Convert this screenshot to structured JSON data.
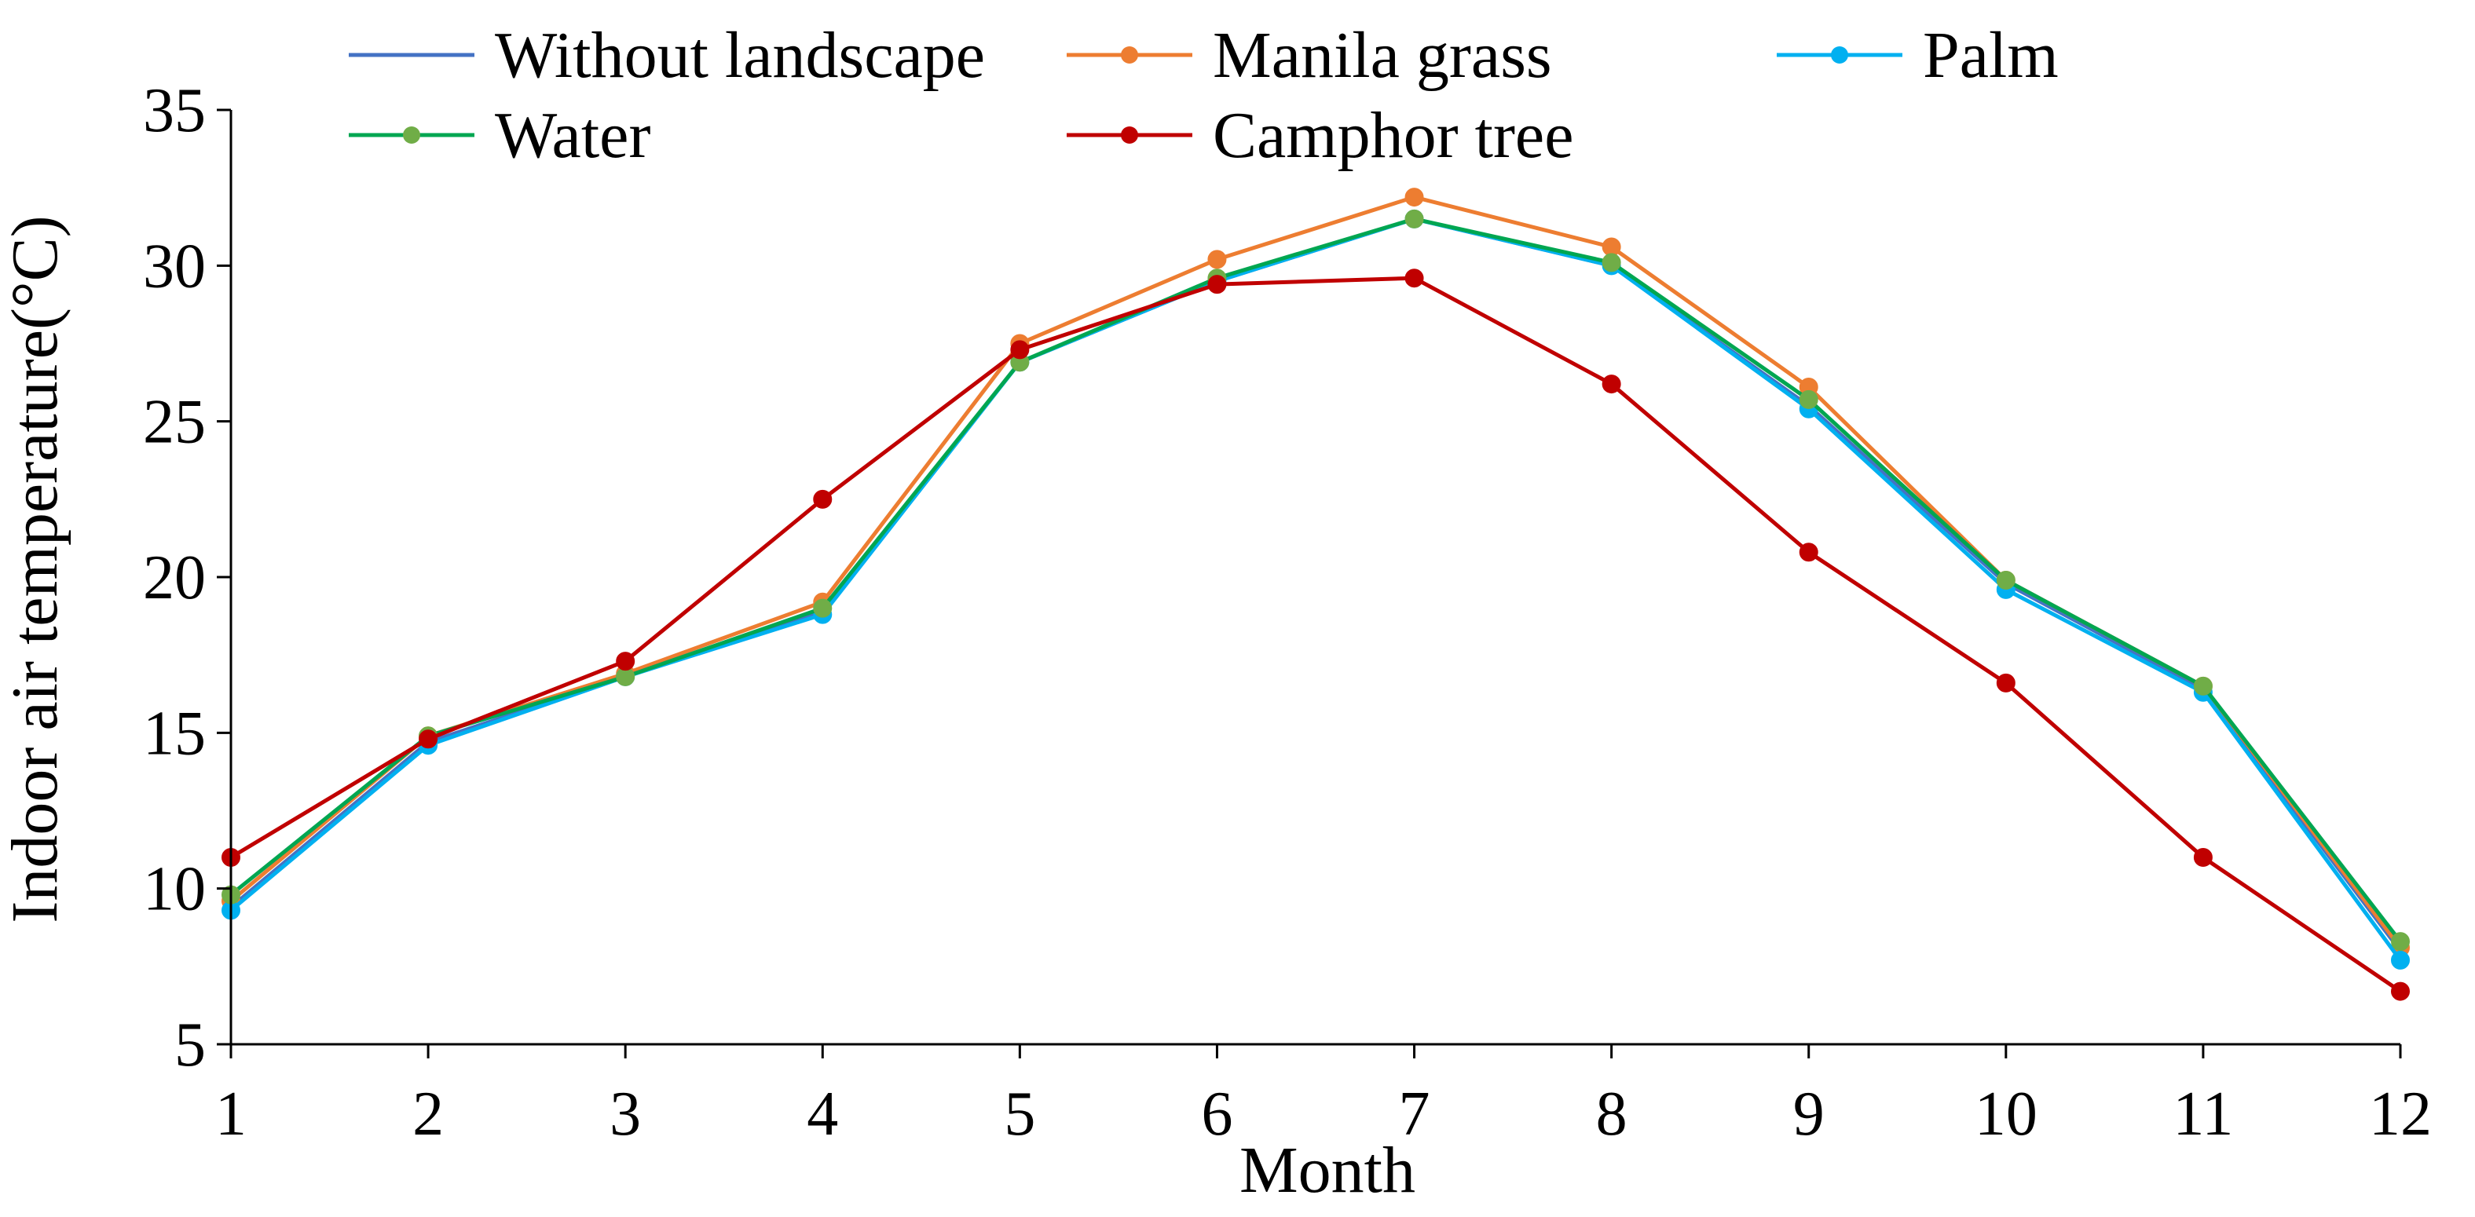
{
  "chart_data": {
    "type": "line",
    "title": "",
    "xlabel": "Month",
    "ylabel": "Indoor air temperature(°C)",
    "categories": [
      "1",
      "2",
      "3",
      "4",
      "5",
      "6",
      "7",
      "8",
      "9",
      "10",
      "11",
      "12"
    ],
    "ylim": [
      5,
      35
    ],
    "yticks": [
      "5",
      "10",
      "15",
      "20",
      "25",
      "30",
      "35"
    ],
    "legend_position": "top",
    "series": [
      {
        "name": "Without landscape",
        "color": "#4472c4",
        "marker": "none",
        "values": [
          9.4,
          14.7,
          16.8,
          18.9,
          26.9,
          29.5,
          31.5,
          30.0,
          25.5,
          19.8,
          16.4,
          8.0
        ]
      },
      {
        "name": "Manila grass",
        "color": "#ed7d31",
        "marker": "circle",
        "values": [
          9.6,
          14.9,
          16.9,
          19.2,
          27.5,
          30.2,
          32.2,
          30.6,
          26.1,
          19.9,
          16.5,
          8.1
        ]
      },
      {
        "name": "Palm",
        "color": "#00b0f0",
        "marker": "circle",
        "values": [
          9.3,
          14.6,
          16.8,
          18.8,
          26.9,
          29.5,
          31.5,
          30.0,
          25.4,
          19.6,
          16.3,
          7.7
        ]
      },
      {
        "name": "Water",
        "color": "#00a651",
        "marker_color": "#70ad47",
        "marker": "circle",
        "values": [
          9.8,
          14.9,
          16.8,
          19.0,
          26.9,
          29.6,
          31.5,
          30.1,
          25.7,
          19.9,
          16.5,
          8.3
        ]
      },
      {
        "name": "Camphor tree",
        "color": "#c00000",
        "marker": "circle",
        "values": [
          11.0,
          14.8,
          17.3,
          22.5,
          27.3,
          29.4,
          29.6,
          26.2,
          20.8,
          16.6,
          11.0,
          6.7
        ]
      }
    ]
  }
}
